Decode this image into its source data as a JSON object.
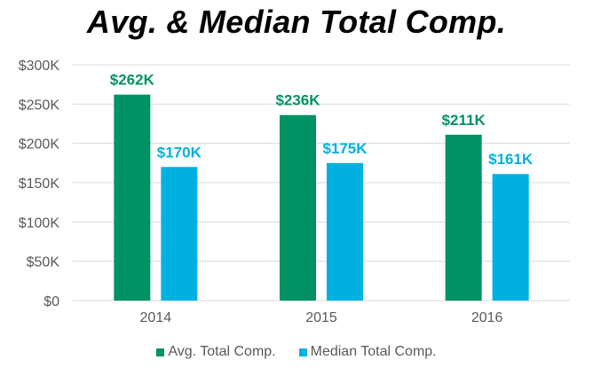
{
  "chart_data": {
    "type": "bar",
    "title": "Avg. & Median Total Comp.",
    "xlabel": "",
    "ylabel": "",
    "categories": [
      "2014",
      "2015",
      "2016"
    ],
    "series": [
      {
        "name": "Avg. Total Comp.",
        "color": "#009264",
        "values": [
          262,
          236,
          211
        ],
        "labels": [
          "$262K",
          "$236K",
          "$211K"
        ]
      },
      {
        "name": "Median Total Comp.",
        "color": "#00B0E0",
        "values": [
          170,
          175,
          161
        ],
        "labels": [
          "$170K",
          "$175K",
          "$161K"
        ]
      }
    ],
    "ylim": [
      0,
      300
    ],
    "yticks": [
      0,
      50,
      100,
      150,
      200,
      250,
      300
    ],
    "ytick_labels": [
      "$0",
      "$50K",
      "$100K",
      "$150K",
      "$200K",
      "$250K",
      "$300K"
    ],
    "grid": true,
    "legend_position": "bottom"
  }
}
